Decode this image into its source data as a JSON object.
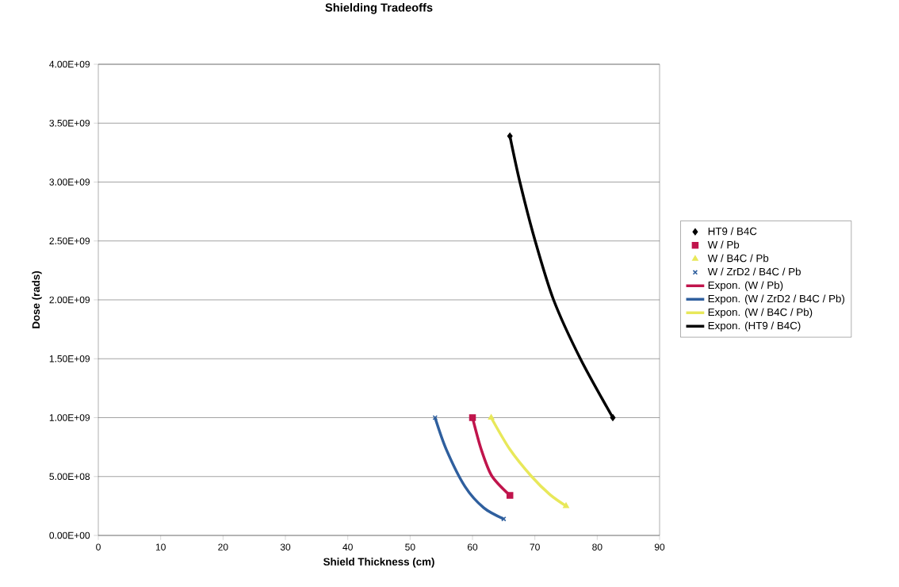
{
  "chart_data": {
    "type": "scatter",
    "title": "Shielding Tradeoffs",
    "xlabel": "Shield Thickness (cm)",
    "ylabel": "Dose (rads)",
    "xlim": [
      0,
      90
    ],
    "xticks": [
      0,
      10,
      20,
      30,
      40,
      50,
      60,
      70,
      80,
      90
    ],
    "ylim": [
      0,
      4000000000
    ],
    "yticks": [
      {
        "value": 0,
        "label": "0.00E+00"
      },
      {
        "value": 500000000,
        "label": "5.00E+08"
      },
      {
        "value": 1000000000,
        "label": "1.00E+09"
      },
      {
        "value": 1500000000,
        "label": "1.50E+09"
      },
      {
        "value": 2000000000,
        "label": "2.00E+09"
      },
      {
        "value": 2500000000,
        "label": "2.50E+09"
      },
      {
        "value": 3000000000,
        "label": "3.00E+09"
      },
      {
        "value": 3500000000,
        "label": "3.50E+09"
      },
      {
        "value": 4000000000,
        "label": "4.00E+09"
      }
    ],
    "grid": "y",
    "legend": "right",
    "series": [
      {
        "name": "HT9 / B4C",
        "marker": "diamond",
        "color": "#000000",
        "x": [
          66,
          82.5
        ],
        "values": [
          3390000000,
          1000000000
        ]
      },
      {
        "name": "W / Pb",
        "marker": "square",
        "color": "#c0144c",
        "x": [
          60,
          66
        ],
        "values": [
          1000000000,
          340000000
        ]
      },
      {
        "name": "W / B4C / Pb",
        "marker": "triangle",
        "color": "#e8e85a",
        "x": [
          63,
          75
        ],
        "values": [
          1000000000,
          250000000
        ]
      },
      {
        "name": "W / ZrD2 / B4C / Pb",
        "marker": "cross",
        "color": "#2f5f9e",
        "x": [
          54,
          65
        ],
        "values": [
          1000000000,
          140000000
        ]
      },
      {
        "name": "Expon. (W / Pb)",
        "type": "line",
        "color": "#c0144c",
        "x": [
          60,
          61.4,
          63.1,
          66
        ],
        "values": [
          1000000000,
          730000000,
          505000000,
          340000000
        ]
      },
      {
        "name": "Expon. (W / ZrD2 / B4C / Pb)",
        "type": "line",
        "color": "#2f5f9e",
        "x": [
          54,
          55.8,
          58.8,
          61.8,
          65
        ],
        "values": [
          1000000000,
          730000000,
          415000000,
          235000000,
          140000000
        ]
      },
      {
        "name": "Expon. (W / B4C / Pb)",
        "type": "line",
        "color": "#e8e85a",
        "x": [
          63,
          66,
          69.4,
          72.4,
          75
        ],
        "values": [
          1000000000,
          730000000,
          505000000,
          348000000,
          250000000
        ]
      },
      {
        "name": "Expon. (HT9 / B4C)",
        "type": "line",
        "color": "#000000",
        "x": [
          66,
          67.6,
          70.05,
          73,
          77.3,
          82.5
        ],
        "values": [
          3390000000,
          3000000000,
          2500000000,
          2000000000,
          1500000000,
          1000000000
        ]
      }
    ]
  }
}
